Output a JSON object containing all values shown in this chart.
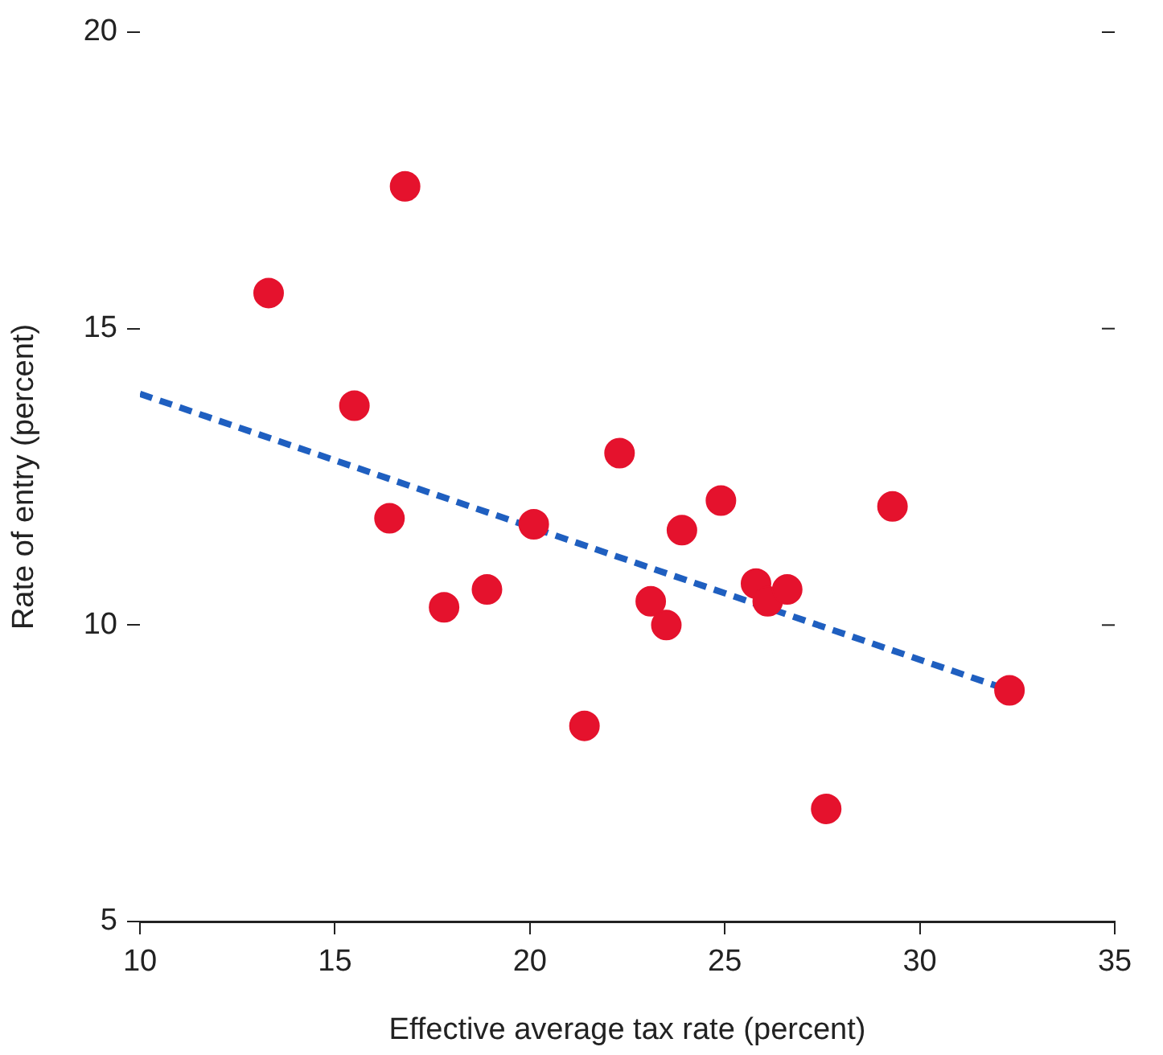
{
  "chart_data": {
    "type": "scatter",
    "xlabel": "Effective average tax rate (percent)",
    "ylabel": "Rate of entry (percent)",
    "xlim": [
      10,
      35
    ],
    "xticks": [
      10,
      15,
      20,
      25,
      30,
      35
    ],
    "ylim": [
      5,
      20
    ],
    "yticks": [
      5,
      10,
      15,
      20
    ],
    "grid": false,
    "marker": "circle",
    "series": [
      {
        "type": "scatter",
        "color": "#e5122d",
        "x": [
          13.3,
          16.8,
          15.5,
          16.4,
          17.8,
          18.9,
          20.1,
          21.4,
          22.3,
          23.1,
          23.5,
          23.9,
          24.9,
          25.8,
          26.1,
          26.6,
          27.6,
          29.3,
          32.3
        ],
        "values": [
          15.6,
          17.4,
          13.7,
          11.8,
          10.3,
          10.6,
          11.7,
          8.3,
          12.9,
          10.4,
          10.0,
          11.6,
          12.1,
          10.7,
          10.4,
          10.6,
          6.9,
          12.0,
          8.9
        ]
      },
      {
        "type": "line",
        "color": "#1f5fc0",
        "line_style": "dashed",
        "marker": "none",
        "x": [
          10,
          32.3
        ],
        "values": [
          13.9,
          8.9
        ]
      }
    ]
  }
}
